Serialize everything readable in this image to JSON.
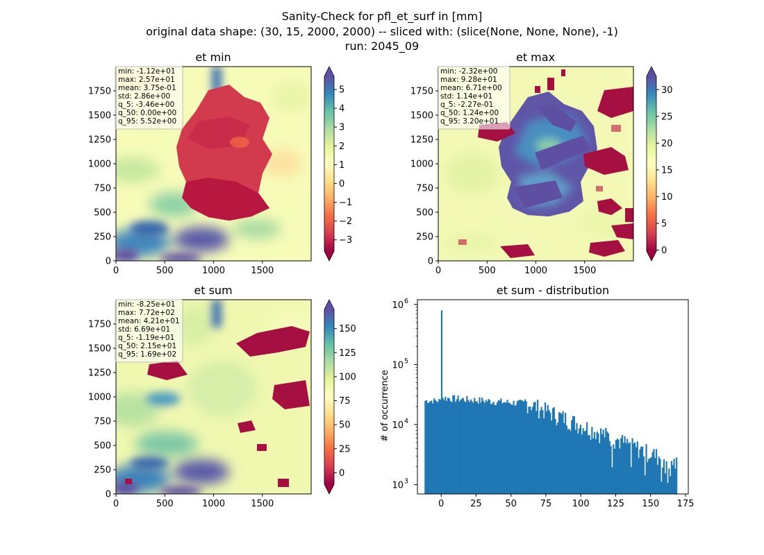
{
  "figure": {
    "title_lines": [
      "Sanity-Check for pfl_et_surf in [mm]",
      "original data shape: (30, 15, 2000, 2000) -- sliced with: (slice(None, None, None), -1)",
      "run: 2045_09"
    ]
  },
  "colormap": {
    "name": "Spectral",
    "stops": [
      "#9e0142",
      "#d53e4f",
      "#f46d43",
      "#fdae61",
      "#fee08b",
      "#ffffbf",
      "#e6f598",
      "#abdda4",
      "#66c2a5",
      "#3288bd",
      "#5e4fa2"
    ]
  },
  "chart_data": [
    {
      "type": "heatmap",
      "title": "et min",
      "xlim": [
        0,
        2000
      ],
      "ylim": [
        0,
        2000
      ],
      "xticks": [
        "0",
        "500",
        "1000",
        "1500"
      ],
      "yticks": [
        "0",
        "250",
        "500",
        "750",
        "1000",
        "1250",
        "1500",
        "1750"
      ],
      "colorbar": {
        "range": [
          -3.6,
          5.7
        ],
        "ticks": [
          "−3",
          "−2",
          "−1",
          "0",
          "1",
          "2",
          "3",
          "4",
          "5"
        ],
        "tick_values": [
          -3,
          -2,
          -1,
          0,
          1,
          2,
          3,
          4,
          5
        ],
        "extend": "both"
      },
      "stats": [
        "min: -1.12e+01",
        "max: 2.57e+01",
        "mean: 3.75e-01",
        "std: 2.86e+00",
        "q_5: -3.46e+00",
        "q_50: 0.00e+00",
        "q_95: 5.52e+00"
      ]
    },
    {
      "type": "heatmap",
      "title": "et max",
      "xlim": [
        0,
        2000
      ],
      "ylim": [
        0,
        2000
      ],
      "xticks": [
        "0",
        "500",
        "1000",
        "1500"
      ],
      "yticks": [
        "0",
        "250",
        "500",
        "750",
        "1000",
        "1250",
        "1500",
        "1750"
      ],
      "colorbar": {
        "range": [
          -0.2,
          32.5
        ],
        "ticks": [
          "0",
          "5",
          "10",
          "15",
          "20",
          "25",
          "30"
        ],
        "tick_values": [
          0,
          5,
          10,
          15,
          20,
          25,
          30
        ],
        "extend": "both"
      },
      "stats": [
        "min: -2.32e+00",
        "max: 9.28e+01",
        "mean: 6.71e+00",
        "std: 1.14e+01",
        "q_5: -2.27e-01",
        "q_50: 1.24e+00",
        "q_95: 3.20e+01"
      ]
    },
    {
      "type": "heatmap",
      "title": "et sum",
      "xlim": [
        0,
        2000
      ],
      "ylim": [
        0,
        2000
      ],
      "xticks": [
        "0",
        "500",
        "1000",
        "1500"
      ],
      "yticks": [
        "0",
        "250",
        "500",
        "750",
        "1000",
        "1250",
        "1500",
        "1750"
      ],
      "colorbar": {
        "range": [
          -12,
          170
        ],
        "ticks": [
          "0",
          "25",
          "50",
          "75",
          "100",
          "125",
          "150"
        ],
        "tick_values": [
          0,
          25,
          50,
          75,
          100,
          125,
          150
        ],
        "extend": "both"
      },
      "stats": [
        "min: -8.25e+01",
        "max: 7.72e+02",
        "mean: 4.21e+01",
        "std: 6.69e+01",
        "q_5: -1.19e+01",
        "q_50: 2.15e+01",
        "q_95: 1.69e+02"
      ]
    },
    {
      "type": "bar",
      "title": "et sum - distribution",
      "ylabel": "# of occurrence",
      "yscale": "log",
      "xlim": [
        -17,
        177
      ],
      "ylim": [
        700,
        1200000
      ],
      "xticks": [
        "0",
        "25",
        "50",
        "75",
        "100",
        "125",
        "150",
        "175"
      ],
      "xtick_values": [
        0,
        25,
        50,
        75,
        100,
        125,
        150,
        175
      ],
      "yticks": [
        "10",
        "10",
        "10",
        "10"
      ],
      "ytick_exponents": [
        "3",
        "4",
        "5",
        "6"
      ],
      "ytick_values": [
        1000,
        10000,
        100000,
        1000000
      ],
      "bin_range": [
        -11.9,
        169
      ],
      "peak": {
        "x": 0,
        "count": 800000
      },
      "color": "#1f77b4"
    }
  ]
}
